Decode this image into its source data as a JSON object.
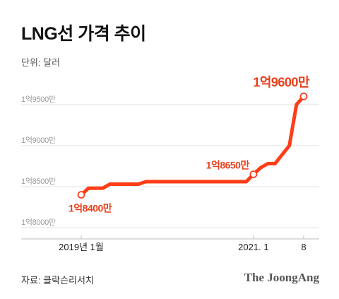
{
  "header": {
    "title": "LNG선 가격 추이",
    "unit": "단위: 달러"
  },
  "footer": {
    "source": "자료: 클락슨리서치",
    "brand": "The JoongAng"
  },
  "colors": {
    "line": "#ff3d17",
    "label": "#e8401c",
    "grid": "#e2e2e2",
    "axis_text": "#9a9a9a"
  },
  "chart_data": {
    "type": "line",
    "title": "LNG선 가격 추이",
    "ylabel": "단위: 달러",
    "ylim": [
      180000000,
      196500000
    ],
    "yticks": [
      180000000,
      185000000,
      190000000,
      195000000
    ],
    "ytick_labels": [
      "1억8000만",
      "1억8500만",
      "1억9000만",
      "1억9500만"
    ],
    "xticks": [
      {
        "label": "2019년 1월",
        "x": 0
      },
      {
        "label": "2021. 1",
        "x": 24
      },
      {
        "label": "8",
        "x": 31
      }
    ],
    "grid": true,
    "series": [
      {
        "points": [
          {
            "x": 0,
            "y": 184000000
          },
          {
            "x": 1,
            "y": 184800000
          },
          {
            "x": 3,
            "y": 184800000
          },
          {
            "x": 4,
            "y": 185300000
          },
          {
            "x": 8,
            "y": 185300000
          },
          {
            "x": 9,
            "y": 185600000
          },
          {
            "x": 23,
            "y": 185600000
          },
          {
            "x": 24,
            "y": 186500000
          },
          {
            "x": 25,
            "y": 187300000
          },
          {
            "x": 26,
            "y": 187800000
          },
          {
            "x": 27,
            "y": 187800000
          },
          {
            "x": 29,
            "y": 190000000
          },
          {
            "x": 30,
            "y": 195000000
          },
          {
            "x": 31,
            "y": 196000000
          }
        ]
      }
    ],
    "annotations": [
      {
        "text": "1억8400만",
        "x": 0,
        "y": 184000000
      },
      {
        "text": "1억8650만",
        "x": 24,
        "y": 186500000
      },
      {
        "text": "1억9600만",
        "x": 31,
        "y": 196000000
      }
    ]
  }
}
